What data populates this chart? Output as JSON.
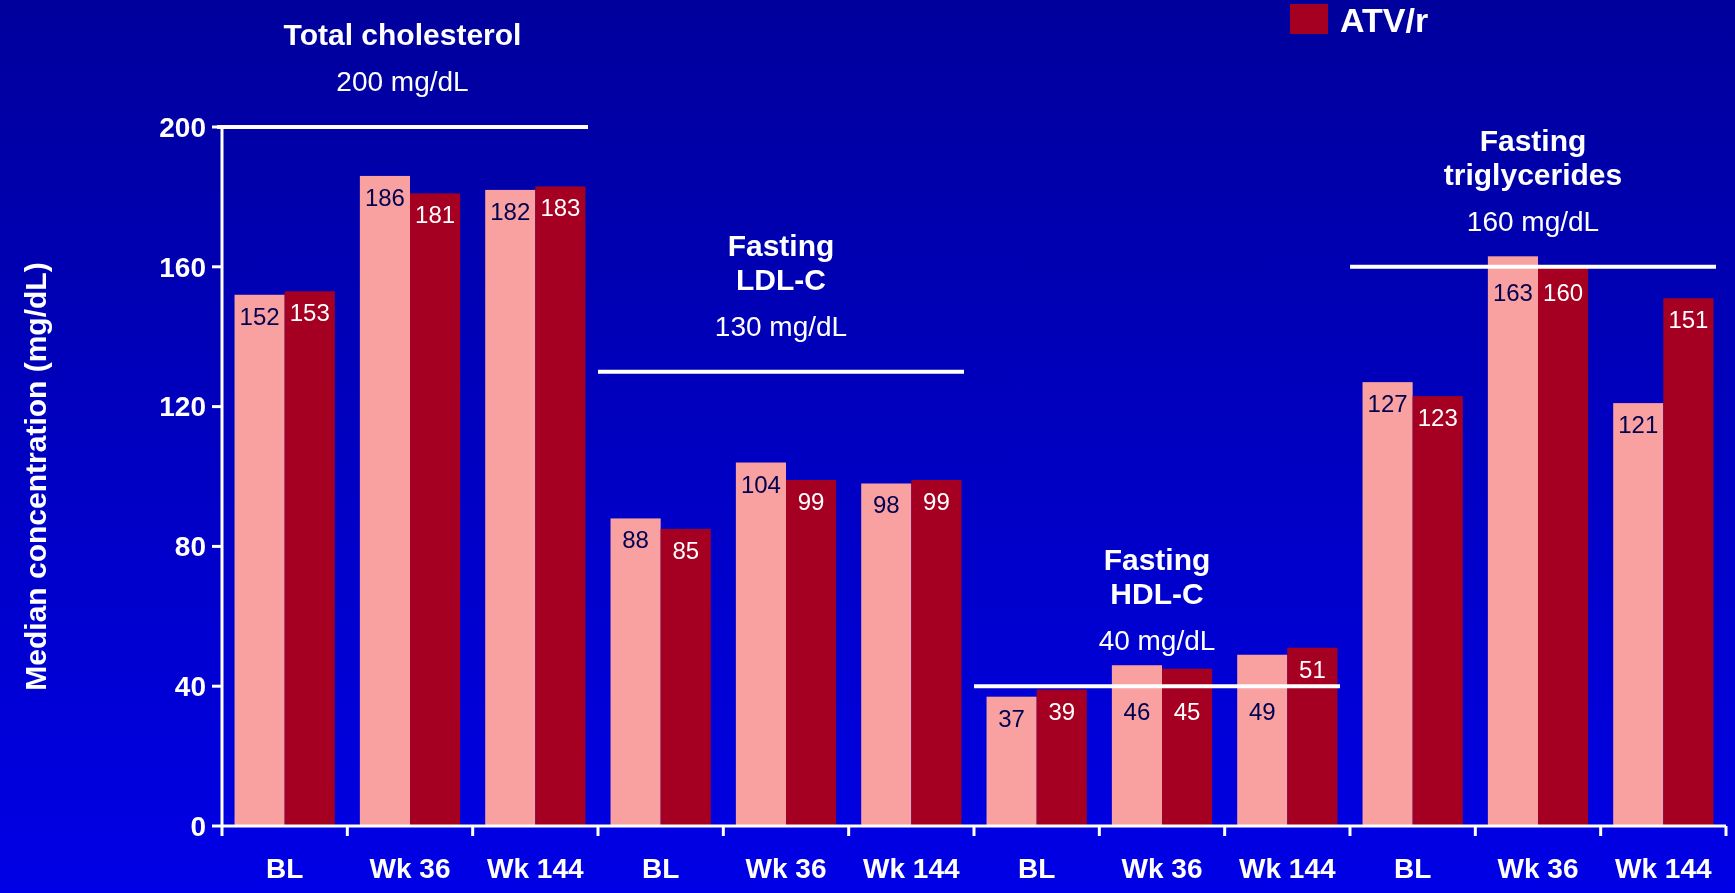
{
  "chart_data": {
    "type": "bar",
    "ylabel": "Median concentration (mg/dL)",
    "categories": [
      "BL",
      "Wk 36",
      "Wk 144",
      "BL",
      "Wk 36",
      "Wk 144",
      "BL",
      "Wk 36",
      "Wk 144",
      "BL",
      "Wk 36",
      "Wk 144"
    ],
    "series": [
      {
        "color": "#f9a0a0",
        "values": [
          152,
          186,
          182,
          88,
          104,
          98,
          37,
          46,
          49,
          127,
          163,
          121
        ]
      },
      {
        "name": "ATV/r",
        "color": "#a50021",
        "values": [
          153,
          181,
          183,
          85,
          99,
          99,
          39,
          45,
          51,
          123,
          160,
          151
        ]
      }
    ],
    "ylim": [
      0,
      200
    ],
    "yticks": [
      0,
      40,
      80,
      120,
      160,
      200
    ],
    "data_labels": true,
    "legend": "top right",
    "grid": false,
    "ref_lines": [
      {
        "axis": "y",
        "value": 200,
        "label": "200 mg/dL",
        "color": "#ffffff"
      },
      {
        "axis": "y",
        "value": 130,
        "label": "130 mg/dL",
        "color": "#ffffff"
      },
      {
        "axis": "y",
        "value": 40,
        "label": "40 mg/dL",
        "color": "#ffffff"
      },
      {
        "axis": "y",
        "value": 160,
        "label": "160 mg/dL",
        "color": "#ffffff"
      }
    ],
    "annotations": [
      "Total cholesterol",
      "Fasting\nLDL-C",
      "Fasting\nHDL-C",
      "Fasting\ntriglycerides"
    ]
  }
}
